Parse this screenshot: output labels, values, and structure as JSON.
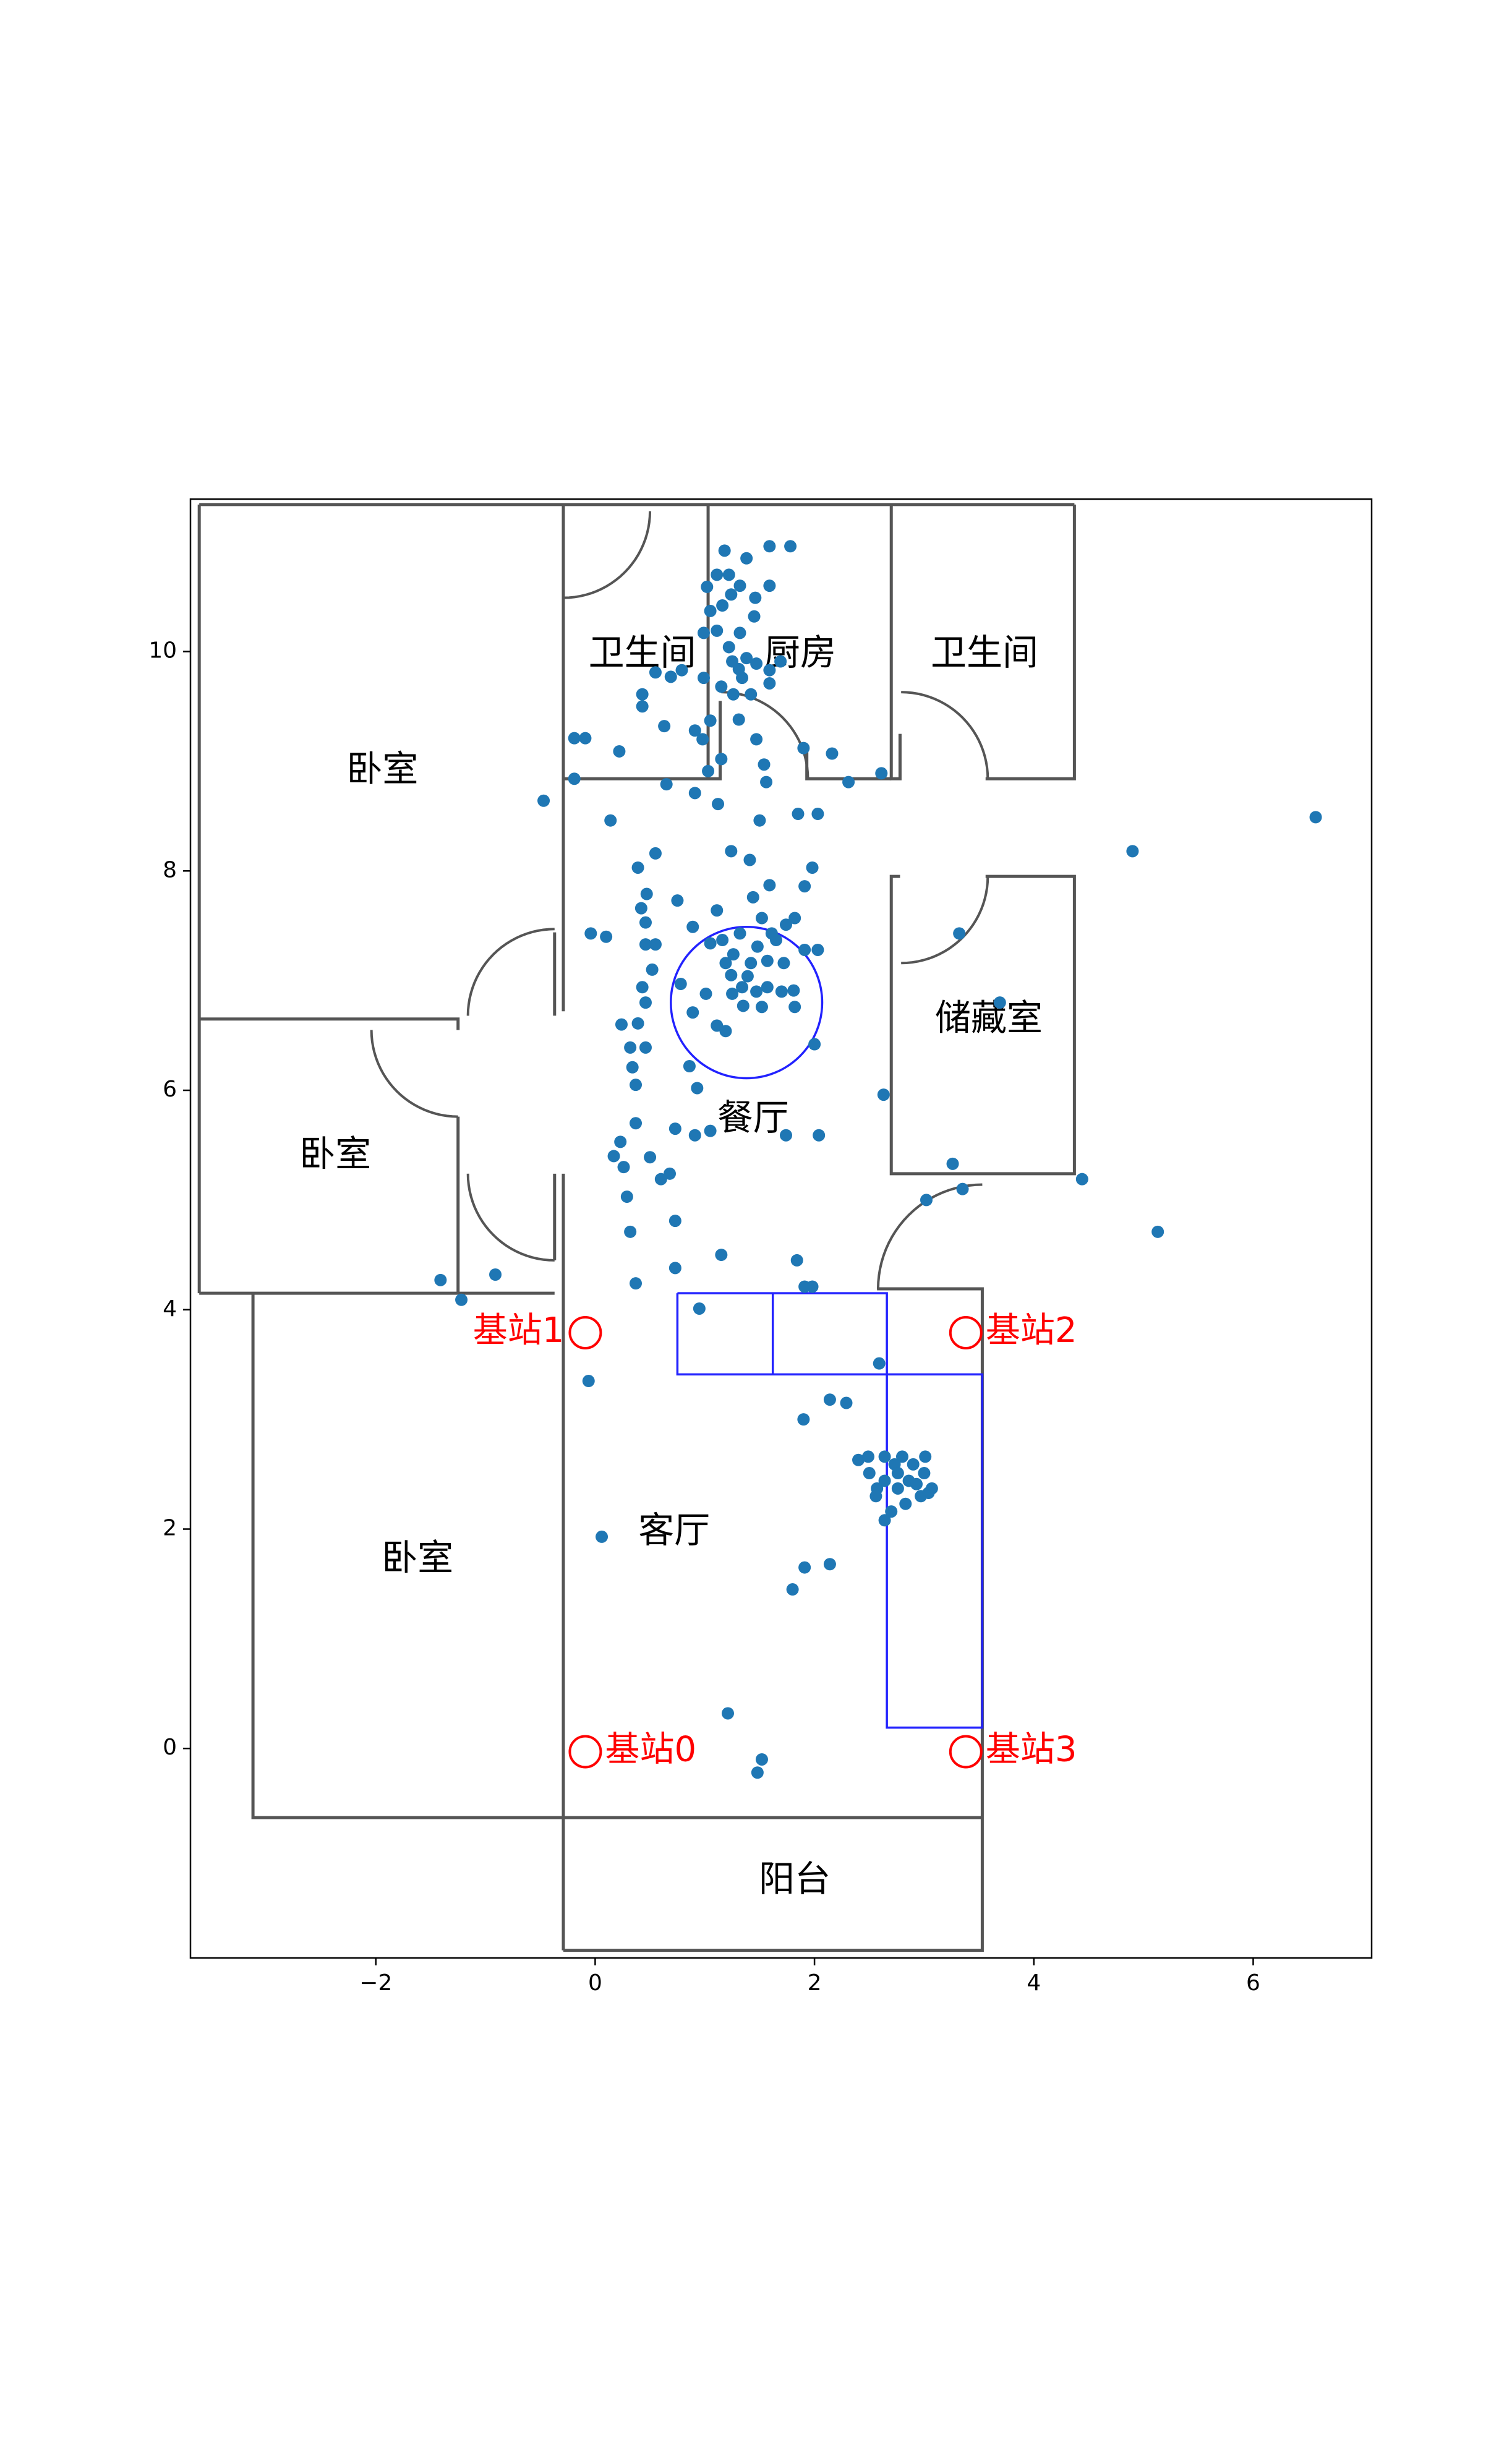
{
  "chart_data": {
    "type": "scatter",
    "xlim": [
      -3.69,
      7.08
    ],
    "ylim": [
      -1.91,
      11.39
    ],
    "xticks": [
      {
        "value": -2,
        "label": "−2"
      },
      0,
      2,
      4,
      6
    ],
    "yticks": [
      0,
      2,
      4,
      6,
      8,
      10
    ],
    "series": [
      {
        "color": "#1f77b4",
        "x": [
          6.57,
          4.9,
          4.44,
          5.13,
          3.32,
          3.69,
          3.26,
          3.35,
          3.02,
          2.63,
          2.61,
          2.31,
          2.16,
          1.9,
          -0.47,
          -0.19,
          -0.09,
          -0.19,
          -0.04,
          0.1,
          0.14,
          -1.41,
          -1.22,
          -0.91,
          -0.06,
          0.06,
          1.21,
          1.52,
          1.48,
          1.8,
          1.91,
          2.14,
          1.9,
          2.14,
          2.29,
          2.59,
          0.95,
          1.15,
          1.84,
          1.91,
          1.98,
          0.73,
          0.37,
          0.73,
          0.32,
          0.29,
          0.26,
          0.23,
          0.17,
          0.37,
          0.5,
          0.6,
          0.68,
          0.73,
          0.91,
          1.05,
          2.04,
          1.74,
          0.86,
          0.93,
          0.37,
          0.34,
          0.32,
          0.46,
          0.39,
          0.24,
          0.46,
          0.43,
          0.52,
          0.46,
          0.55,
          0.46,
          0.42,
          0.47,
          0.39,
          0.55,
          0.75,
          0.89,
          1.11,
          0.91,
          0.65,
          1.12,
          1.24,
          1.41,
          1.44,
          1.59,
          1.85,
          2.03,
          1.98,
          1.91,
          1.5,
          1.56,
          0.78,
          0.89,
          1.01,
          1.11,
          1.19,
          1.25,
          1.34,
          1.42,
          1.48,
          1.57,
          1.65,
          1.74,
          1.82,
          1.72,
          1.91,
          2.03,
          2.0,
          1.81,
          1.7,
          1.57,
          1.47,
          1.35,
          1.26,
          1.19,
          1.16,
          1.32,
          1.52,
          1.61,
          1.24,
          1.39,
          1.05,
          1.52,
          1.82,
          1.18,
          1.38,
          1.59,
          1.78,
          1.22,
          1.32,
          1.11,
          1.02,
          1.16,
          1.24,
          1.46,
          1.59,
          1.05,
          0.99,
          1.11,
          1.22,
          1.32,
          1.45,
          1.25,
          1.38,
          1.31,
          1.47,
          1.59,
          1.69,
          1.34,
          1.15,
          0.99,
          0.79,
          0.69,
          0.55,
          0.43,
          0.43,
          0.63,
          0.91,
          0.98,
          1.05,
          1.26,
          1.42,
          1.59,
          1.47,
          1.31,
          1.15,
          1.03,
          1.54,
          0.22,
          2.4,
          2.5,
          2.57,
          2.64,
          2.73,
          2.8,
          2.9,
          3.0,
          3.07,
          2.97,
          2.83,
          2.7,
          2.64,
          2.76,
          2.64,
          2.56,
          2.86,
          3.01,
          2.49,
          2.93,
          2.76,
          3.04
        ],
        "y": [
          8.49,
          8.18,
          5.19,
          4.71,
          7.43,
          6.8,
          5.33,
          5.1,
          5.0,
          5.96,
          8.89,
          8.81,
          9.07,
          9.12,
          8.64,
          9.21,
          9.21,
          8.84,
          7.43,
          7.4,
          8.46,
          4.27,
          4.09,
          4.32,
          3.35,
          1.93,
          0.32,
          -0.1,
          -0.22,
          1.45,
          1.65,
          1.68,
          3.0,
          3.18,
          3.15,
          3.51,
          4.01,
          4.5,
          4.45,
          4.21,
          4.21,
          4.38,
          4.24,
          4.81,
          4.71,
          5.03,
          5.3,
          5.53,
          5.4,
          5.7,
          5.39,
          5.19,
          5.24,
          5.65,
          5.59,
          5.63,
          5.59,
          5.59,
          6.22,
          6.02,
          6.05,
          6.21,
          6.39,
          6.39,
          6.61,
          6.6,
          6.8,
          6.94,
          7.1,
          7.33,
          7.33,
          7.53,
          7.66,
          7.79,
          8.03,
          8.16,
          7.73,
          7.49,
          7.64,
          8.71,
          8.79,
          8.61,
          8.18,
          8.1,
          7.76,
          7.87,
          8.52,
          8.52,
          8.03,
          7.86,
          8.46,
          8.81,
          6.97,
          6.71,
          6.88,
          6.59,
          6.54,
          6.88,
          6.94,
          7.16,
          7.31,
          7.18,
          7.37,
          7.51,
          7.57,
          7.16,
          7.28,
          7.28,
          6.42,
          6.91,
          6.9,
          6.94,
          6.9,
          6.77,
          7.24,
          7.16,
          7.37,
          7.43,
          7.57,
          7.43,
          7.05,
          7.04,
          7.34,
          6.76,
          6.76,
          10.92,
          10.85,
          10.96,
          10.96,
          10.7,
          10.6,
          10.7,
          10.59,
          10.42,
          10.52,
          10.49,
          10.6,
          10.37,
          10.17,
          10.19,
          10.04,
          10.17,
          10.32,
          9.91,
          9.94,
          9.84,
          9.89,
          9.83,
          9.91,
          9.76,
          9.68,
          9.76,
          9.83,
          9.77,
          9.81,
          9.61,
          9.5,
          9.32,
          9.28,
          9.2,
          9.37,
          9.61,
          9.61,
          9.71,
          9.2,
          9.38,
          9.02,
          8.91,
          8.97,
          9.09,
          2.63,
          2.51,
          2.37,
          2.66,
          2.59,
          2.66,
          2.59,
          2.51,
          2.37,
          2.3,
          2.23,
          2.16,
          2.08,
          2.37,
          2.44,
          2.3,
          2.44,
          2.66,
          2.66,
          2.41,
          2.51,
          2.33
        ]
      }
    ],
    "rooms": [
      "卧室",
      "卧室",
      "卧室",
      "卫生间",
      "厨房",
      "卫生间",
      "储藏室",
      "餐厅",
      "客厅",
      "阳台"
    ],
    "stations": {
      "color": "#ff0000",
      "names": [
        "基站0",
        "基站1",
        "基站2",
        "基站3"
      ],
      "x": [
        -0.09,
        -0.09,
        3.38,
        3.38
      ],
      "y": [
        -0.03,
        3.79,
        3.79,
        -0.03
      ]
    }
  }
}
